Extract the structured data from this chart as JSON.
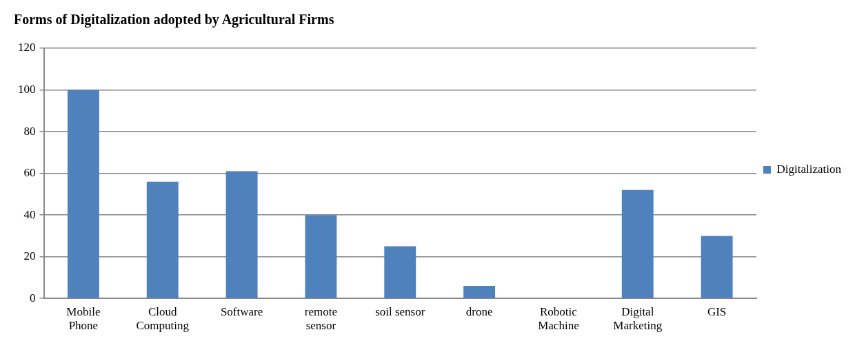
{
  "chart_data": {
    "type": "bar",
    "title": "Forms of Digitalization adopted by Agricultural Firms",
    "categories": [
      "Mobile Phone",
      "Cloud Computing",
      "Software",
      "remote sensor",
      "soil sensor",
      "drone",
      "Robotic Machine",
      "Digital Marketing",
      "GIS"
    ],
    "series": [
      {
        "name": "Digitalization",
        "color": "#4f81bd",
        "values": [
          100,
          56,
          61,
          40,
          25,
          6,
          0,
          52,
          30
        ]
      }
    ],
    "ylim": [
      0,
      120
    ],
    "yticks": [
      0,
      20,
      40,
      60,
      80,
      100,
      120
    ],
    "grid": "y",
    "legend": "right"
  }
}
